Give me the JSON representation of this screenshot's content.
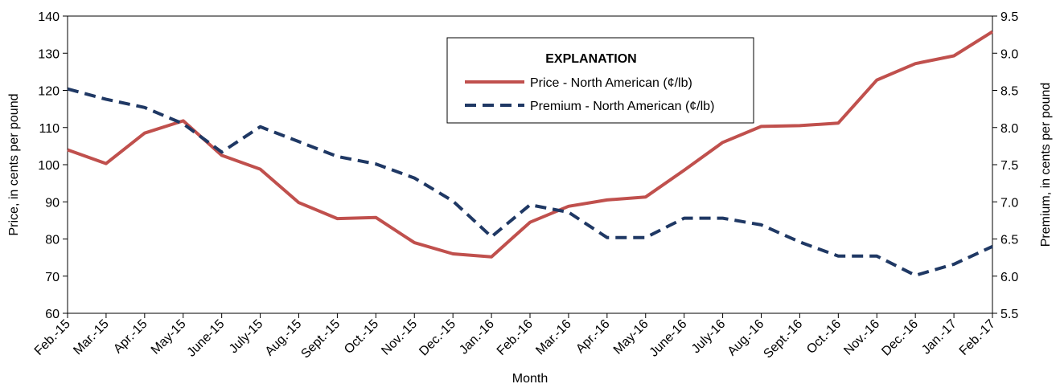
{
  "chart_data": {
    "type": "line",
    "xlabel": "Month",
    "ylabel_left": "Price, in cents per pound",
    "ylabel_right": "Premium, in cents per pound",
    "ylim_left": [
      60,
      140
    ],
    "ylim_right": [
      5.5,
      9.5
    ],
    "yticks_left": [
      "60",
      "70",
      "80",
      "90",
      "100",
      "110",
      "120",
      "130",
      "140"
    ],
    "yticks_right": [
      "5.5",
      "6.0",
      "6.5",
      "7.0",
      "7.5",
      "8.0",
      "8.5",
      "9.0",
      "9.5"
    ],
    "categories": [
      "Feb.-15",
      "Mar.-15",
      "Apr.-15",
      "May-15",
      "June-15",
      "July-15",
      "Aug.-15",
      "Sept.-15",
      "Oct.-15",
      "Nov.-15",
      "Dec.-15",
      "Jan.-16",
      "Feb.-16",
      "Mar.-16",
      "Apr.-16",
      "May-16",
      "June-16",
      "July-16",
      "Aug.-16",
      "Sept.-16",
      "Oct.-16",
      "Nov.-16",
      "Dec.-16",
      "Jan.-17",
      "Feb.-17"
    ],
    "legend": {
      "title": "EXPLANATION"
    },
    "series": [
      {
        "name": "Price - North American (¢/lb)",
        "axis": "left",
        "color": "#c0504d",
        "style": "solid",
        "values": [
          104.0,
          100.3,
          108.5,
          111.8,
          102.5,
          98.8,
          89.8,
          85.5,
          85.8,
          79.0,
          76.0,
          75.2,
          84.5,
          88.8,
          90.5,
          91.3,
          98.5,
          106.0,
          110.3,
          110.5,
          111.2,
          122.8,
          127.2,
          129.3,
          135.8
        ]
      },
      {
        "name": "Premium - North American (¢/lb)",
        "axis": "right",
        "color": "#1f3864",
        "style": "dashed",
        "values": [
          8.52,
          8.38,
          8.27,
          8.05,
          7.67,
          8.01,
          7.81,
          7.61,
          7.51,
          7.32,
          7.01,
          6.53,
          6.96,
          6.86,
          6.52,
          6.52,
          6.78,
          6.78,
          6.69,
          6.46,
          6.27,
          6.27,
          6.01,
          6.16,
          6.4
        ]
      }
    ]
  }
}
